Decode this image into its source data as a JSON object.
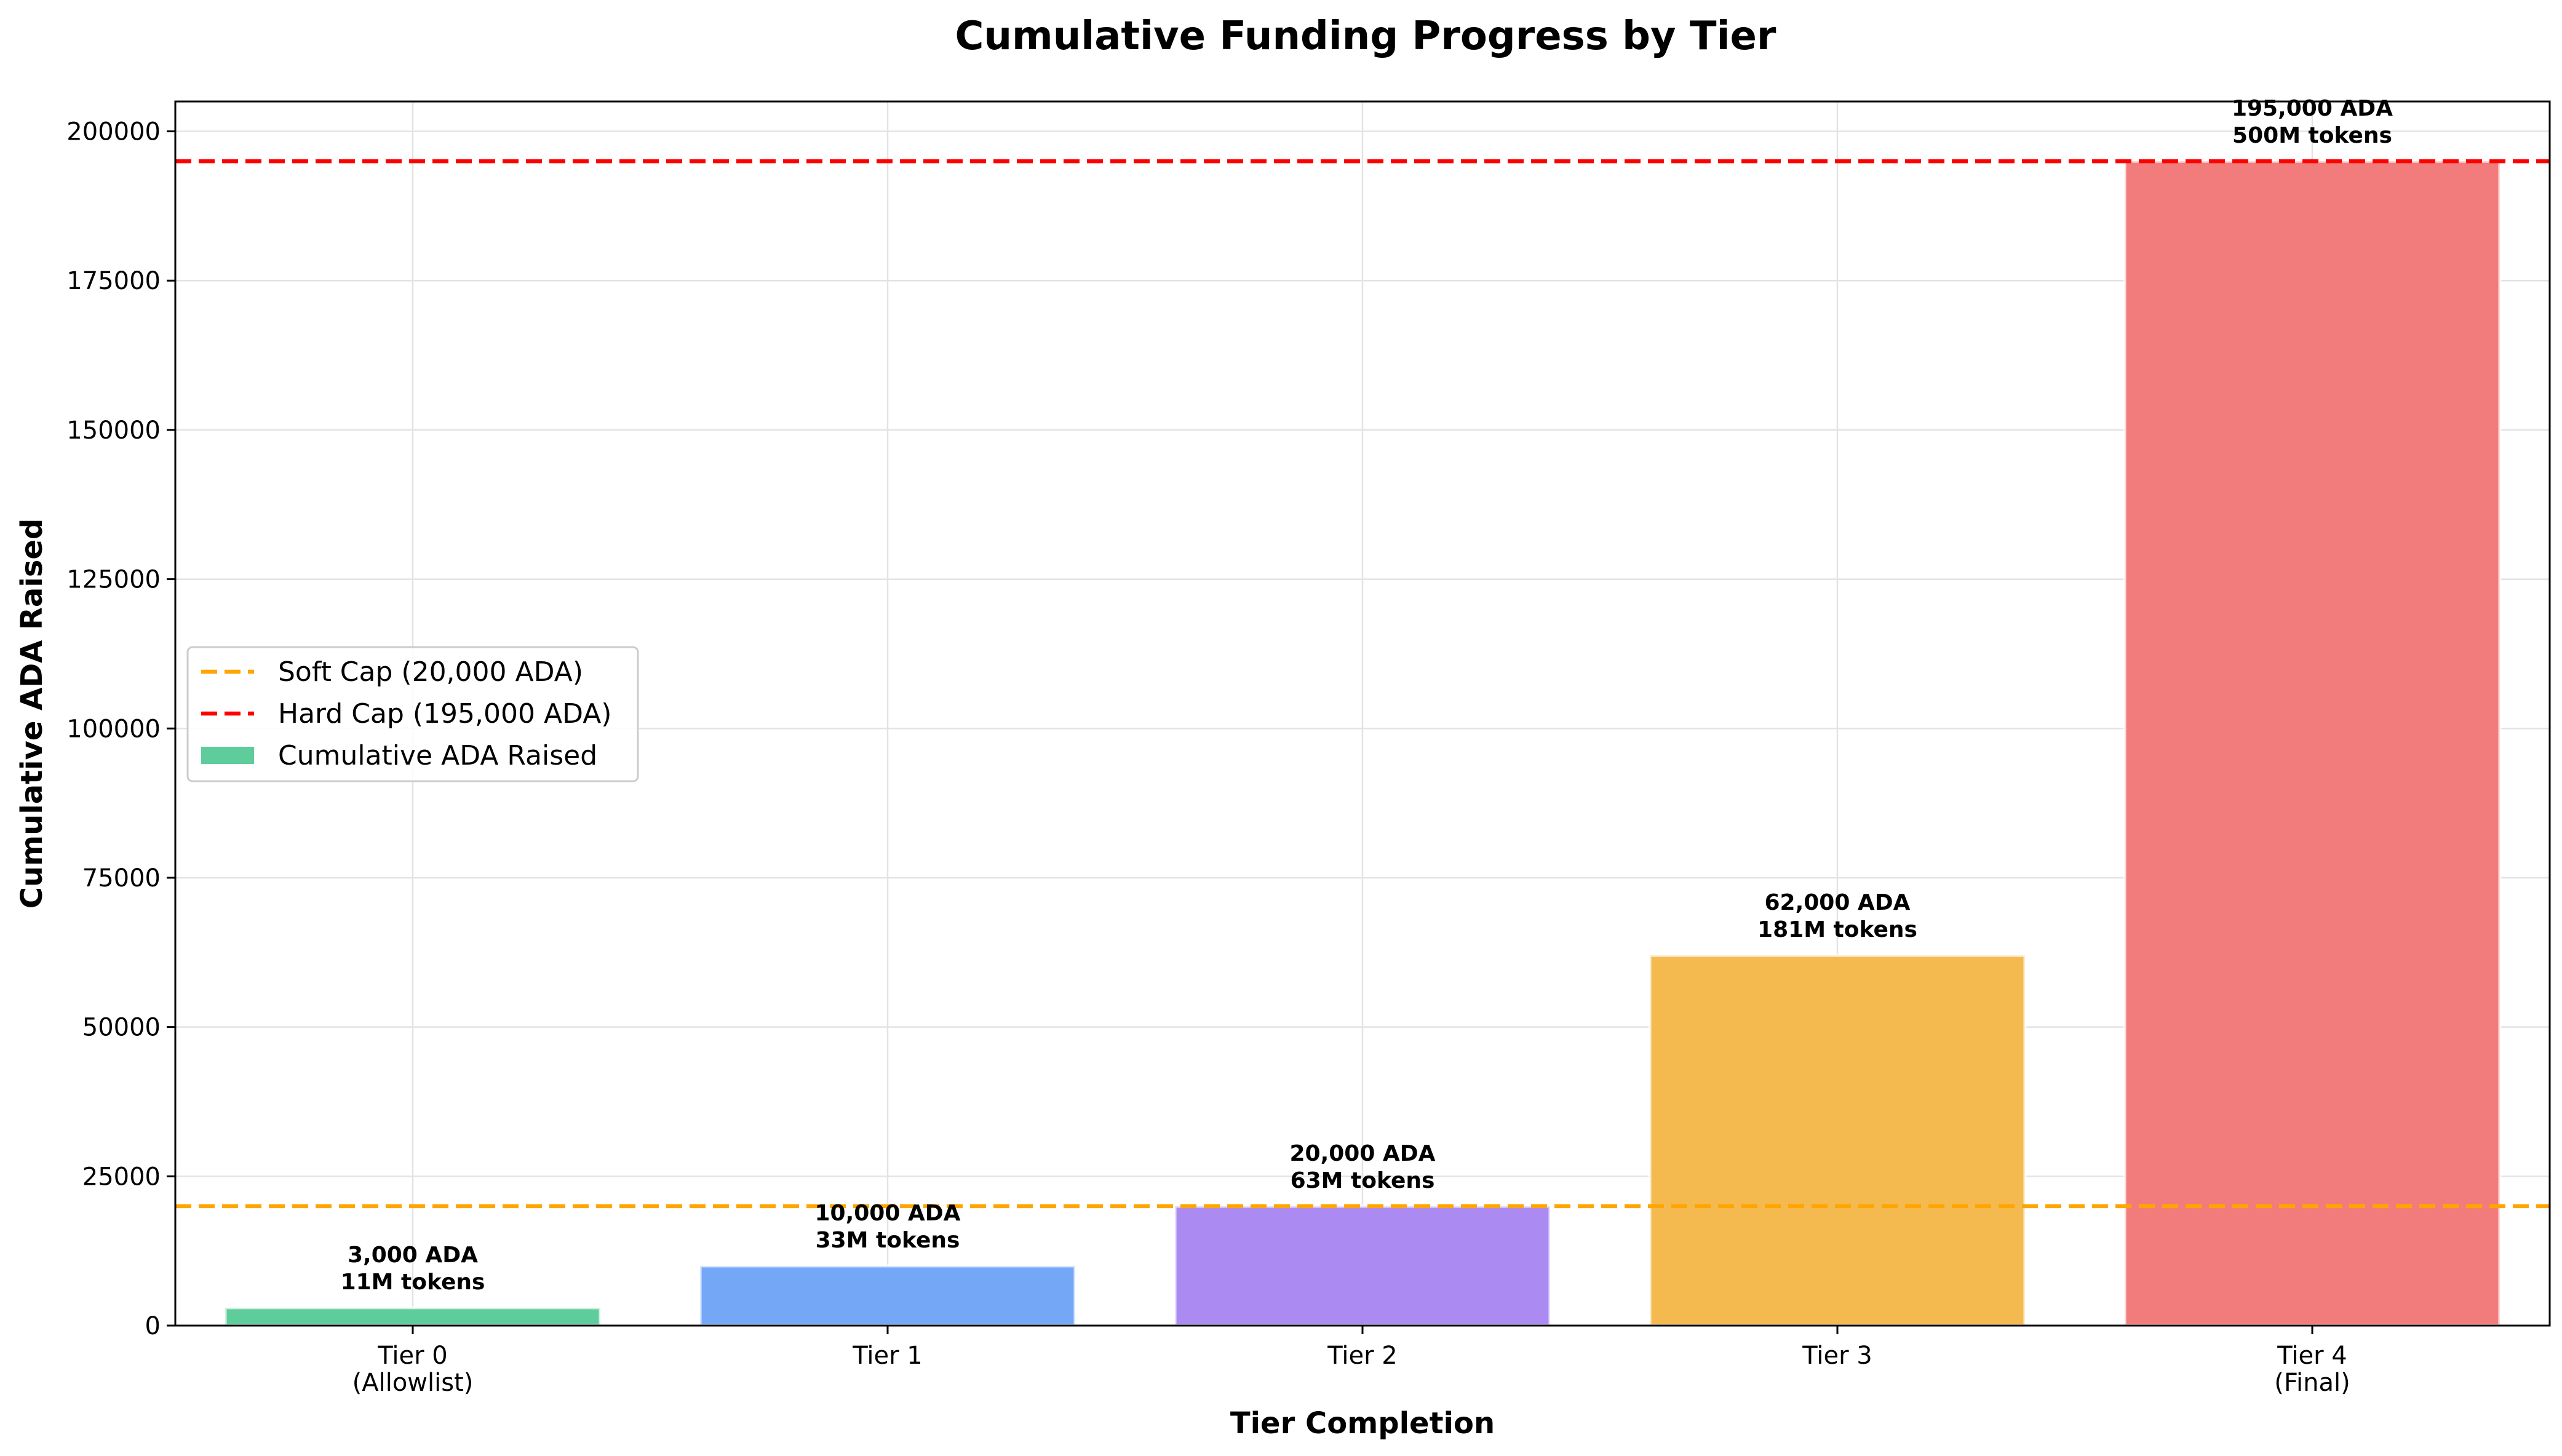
{
  "chart_data": {
    "type": "bar",
    "title": "Cumulative Funding Progress by Tier",
    "xlabel": "Tier Completion",
    "ylabel": "Cumulative ADA Raised",
    "ylim": [
      0,
      205000
    ],
    "yticks": [
      0,
      25000,
      50000,
      75000,
      100000,
      125000,
      150000,
      175000,
      200000
    ],
    "grid": true,
    "legend_position": "center-left",
    "categories": [
      {
        "line1": "Tier 0",
        "line2": "(Allowlist)"
      },
      {
        "line1": "Tier 1",
        "line2": ""
      },
      {
        "line1": "Tier 2",
        "line2": ""
      },
      {
        "line1": "Tier 3",
        "line2": ""
      },
      {
        "line1": "Tier 4",
        "line2": "(Final)"
      }
    ],
    "series": [
      {
        "name": "Cumulative ADA Raised",
        "values": [
          3000,
          10000,
          20000,
          62000,
          195000
        ],
        "colors": [
          "#5fcc9c",
          "#74a8f7",
          "#ab8af2",
          "#f5ba4f",
          "#f27c7c"
        ],
        "labels": [
          {
            "ada": "3,000 ADA",
            "tokens": "11M tokens"
          },
          {
            "ada": "10,000 ADA",
            "tokens": "33M tokens"
          },
          {
            "ada": "20,000 ADA",
            "tokens": "63M tokens"
          },
          {
            "ada": "62,000 ADA",
            "tokens": "181M tokens"
          },
          {
            "ada": "195,000 ADA",
            "tokens": "500M tokens"
          }
        ]
      }
    ],
    "reference_lines": [
      {
        "name": "Soft Cap (20,000 ADA)",
        "value": 20000,
        "color": "#ffa500",
        "style": "dashed"
      },
      {
        "name": "Hard Cap (195,000 ADA)",
        "value": 195000,
        "color": "#ff0000",
        "style": "dashed"
      }
    ]
  }
}
